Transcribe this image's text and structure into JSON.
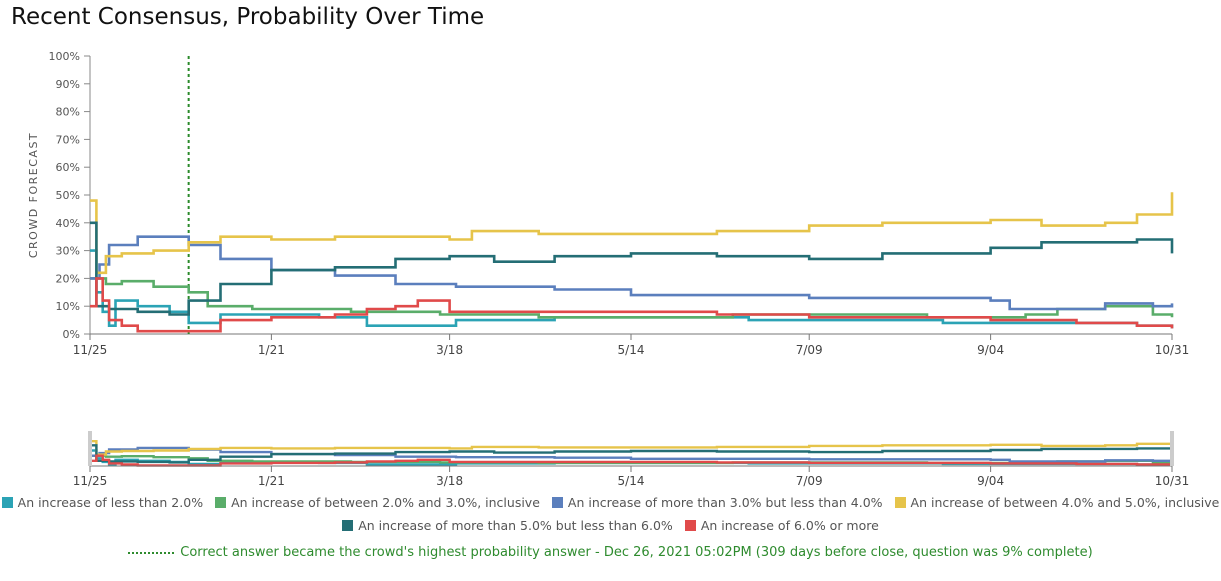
{
  "title": "Recent Consensus, Probability Over Time",
  "chart_data": {
    "type": "line",
    "ylabel": "CROWD FORECAST",
    "ylim": [
      0,
      100
    ],
    "yticks": [
      "0%",
      "10%",
      "20%",
      "30%",
      "40%",
      "50%",
      "60%",
      "70%",
      "80%",
      "90%",
      "100%"
    ],
    "xlim": [
      "2021-11-25",
      "2022-10-31"
    ],
    "xticks": [
      {
        "label": "11/25",
        "date": "2021-11-25"
      },
      {
        "label": "1/21",
        "date": "2022-01-21"
      },
      {
        "label": "3/18",
        "date": "2022-03-18"
      },
      {
        "label": "5/14",
        "date": "2022-05-14"
      },
      {
        "label": "7/09",
        "date": "2022-07-09"
      },
      {
        "label": "9/04",
        "date": "2022-09-04"
      },
      {
        "label": "10/31",
        "date": "2022-10-31"
      }
    ],
    "marker": {
      "date": "2021-12-26",
      "style": "dotted",
      "color": "#2a8a2a"
    },
    "series": [
      {
        "name": "An increase of less than 2.0%",
        "color": "#2ba3b5",
        "points": [
          [
            "2021-11-25",
            30
          ],
          [
            "2021-11-27",
            15
          ],
          [
            "2021-11-29",
            8
          ],
          [
            "2021-12-01",
            3
          ],
          [
            "2021-12-03",
            12
          ],
          [
            "2021-12-10",
            10
          ],
          [
            "2021-12-20",
            8
          ],
          [
            "2021-12-26",
            4
          ],
          [
            "2022-01-05",
            7
          ],
          [
            "2022-02-05",
            6
          ],
          [
            "2022-02-20",
            3
          ],
          [
            "2022-03-20",
            5
          ],
          [
            "2022-04-20",
            6
          ],
          [
            "2022-05-20",
            6
          ],
          [
            "2022-06-20",
            5
          ],
          [
            "2022-07-20",
            5
          ],
          [
            "2022-08-20",
            4
          ],
          [
            "2022-09-20",
            4
          ],
          [
            "2022-10-20",
            3
          ],
          [
            "2022-10-31",
            2
          ]
        ]
      },
      {
        "name": "An increase of between 2.0% and 3.0%, inclusive",
        "color": "#5aad6a",
        "points": [
          [
            "2021-11-25",
            20
          ],
          [
            "2021-11-30",
            18
          ],
          [
            "2021-12-05",
            19
          ],
          [
            "2021-12-15",
            17
          ],
          [
            "2021-12-26",
            15
          ],
          [
            "2022-01-01",
            10
          ],
          [
            "2022-01-15",
            9
          ],
          [
            "2022-02-15",
            8
          ],
          [
            "2022-03-15",
            7
          ],
          [
            "2022-04-15",
            6
          ],
          [
            "2022-05-15",
            6
          ],
          [
            "2022-06-15",
            7
          ],
          [
            "2022-07-15",
            7
          ],
          [
            "2022-08-15",
            6
          ],
          [
            "2022-09-15",
            7
          ],
          [
            "2022-09-25",
            9
          ],
          [
            "2022-10-10",
            10
          ],
          [
            "2022-10-25",
            7
          ],
          [
            "2022-10-31",
            6
          ]
        ]
      },
      {
        "name": "An increase of more than 3.0% but less than 4.0%",
        "color": "#5b7fbd",
        "points": [
          [
            "2021-11-25",
            20
          ],
          [
            "2021-11-28",
            25
          ],
          [
            "2021-12-01",
            32
          ],
          [
            "2021-12-10",
            35
          ],
          [
            "2021-12-20",
            35
          ],
          [
            "2021-12-26",
            32
          ],
          [
            "2022-01-05",
            27
          ],
          [
            "2022-01-21",
            23
          ],
          [
            "2022-02-10",
            21
          ],
          [
            "2022-03-01",
            18
          ],
          [
            "2022-03-20",
            17
          ],
          [
            "2022-04-20",
            16
          ],
          [
            "2022-05-14",
            14
          ],
          [
            "2022-06-10",
            14
          ],
          [
            "2022-07-09",
            13
          ],
          [
            "2022-08-01",
            13
          ],
          [
            "2022-09-04",
            12
          ],
          [
            "2022-09-10",
            9
          ],
          [
            "2022-10-01",
            9
          ],
          [
            "2022-10-10",
            11
          ],
          [
            "2022-10-25",
            10
          ],
          [
            "2022-10-31",
            11
          ]
        ]
      },
      {
        "name": "An increase of between 4.0% and 5.0%, inclusive",
        "color": "#e6c44a",
        "points": [
          [
            "2021-11-25",
            48
          ],
          [
            "2021-11-27",
            22
          ],
          [
            "2021-11-30",
            28
          ],
          [
            "2021-12-05",
            29
          ],
          [
            "2021-12-15",
            30
          ],
          [
            "2021-12-26",
            33
          ],
          [
            "2022-01-05",
            35
          ],
          [
            "2022-01-21",
            34
          ],
          [
            "2022-02-10",
            35
          ],
          [
            "2022-03-01",
            35
          ],
          [
            "2022-03-18",
            34
          ],
          [
            "2022-03-25",
            37
          ],
          [
            "2022-04-15",
            36
          ],
          [
            "2022-05-14",
            36
          ],
          [
            "2022-06-10",
            37
          ],
          [
            "2022-07-09",
            39
          ],
          [
            "2022-08-01",
            40
          ],
          [
            "2022-09-04",
            41
          ],
          [
            "2022-09-20",
            39
          ],
          [
            "2022-10-10",
            40
          ],
          [
            "2022-10-20",
            43
          ],
          [
            "2022-10-31",
            51
          ]
        ]
      },
      {
        "name": "An increase of more than 5.0% but less than 6.0%",
        "color": "#246e75",
        "points": [
          [
            "2021-11-25",
            40
          ],
          [
            "2021-11-27",
            10
          ],
          [
            "2021-12-01",
            9
          ],
          [
            "2021-12-10",
            8
          ],
          [
            "2021-12-20",
            7
          ],
          [
            "2021-12-26",
            12
          ],
          [
            "2022-01-05",
            18
          ],
          [
            "2022-01-21",
            23
          ],
          [
            "2022-02-10",
            24
          ],
          [
            "2022-03-01",
            27
          ],
          [
            "2022-03-18",
            28
          ],
          [
            "2022-04-01",
            26
          ],
          [
            "2022-04-20",
            28
          ],
          [
            "2022-05-14",
            29
          ],
          [
            "2022-06-10",
            28
          ],
          [
            "2022-07-09",
            27
          ],
          [
            "2022-08-01",
            29
          ],
          [
            "2022-09-04",
            31
          ],
          [
            "2022-09-20",
            33
          ],
          [
            "2022-10-10",
            33
          ],
          [
            "2022-10-20",
            34
          ],
          [
            "2022-10-31",
            29
          ]
        ]
      },
      {
        "name": "An increase of 6.0% or more",
        "color": "#e04a4a",
        "points": [
          [
            "2021-11-25",
            10
          ],
          [
            "2021-11-27",
            20
          ],
          [
            "2021-11-29",
            12
          ],
          [
            "2021-12-01",
            5
          ],
          [
            "2021-12-05",
            3
          ],
          [
            "2021-12-10",
            1
          ],
          [
            "2021-12-20",
            1
          ],
          [
            "2021-12-26",
            1
          ],
          [
            "2022-01-05",
            5
          ],
          [
            "2022-01-21",
            6
          ],
          [
            "2022-02-10",
            7
          ],
          [
            "2022-02-20",
            9
          ],
          [
            "2022-03-01",
            10
          ],
          [
            "2022-03-08",
            12
          ],
          [
            "2022-03-18",
            8
          ],
          [
            "2022-04-15",
            8
          ],
          [
            "2022-05-14",
            8
          ],
          [
            "2022-06-10",
            7
          ],
          [
            "2022-07-09",
            6
          ],
          [
            "2022-08-01",
            6
          ],
          [
            "2022-09-04",
            5
          ],
          [
            "2022-10-01",
            4
          ],
          [
            "2022-10-20",
            3
          ],
          [
            "2022-10-31",
            2
          ]
        ]
      }
    ]
  },
  "note": {
    "text": "Correct answer became the crowd's highest probability answer - Dec 26, 2021 05:02PM (309 days before close, question was 9% complete)",
    "color": "#2e8b2e"
  }
}
